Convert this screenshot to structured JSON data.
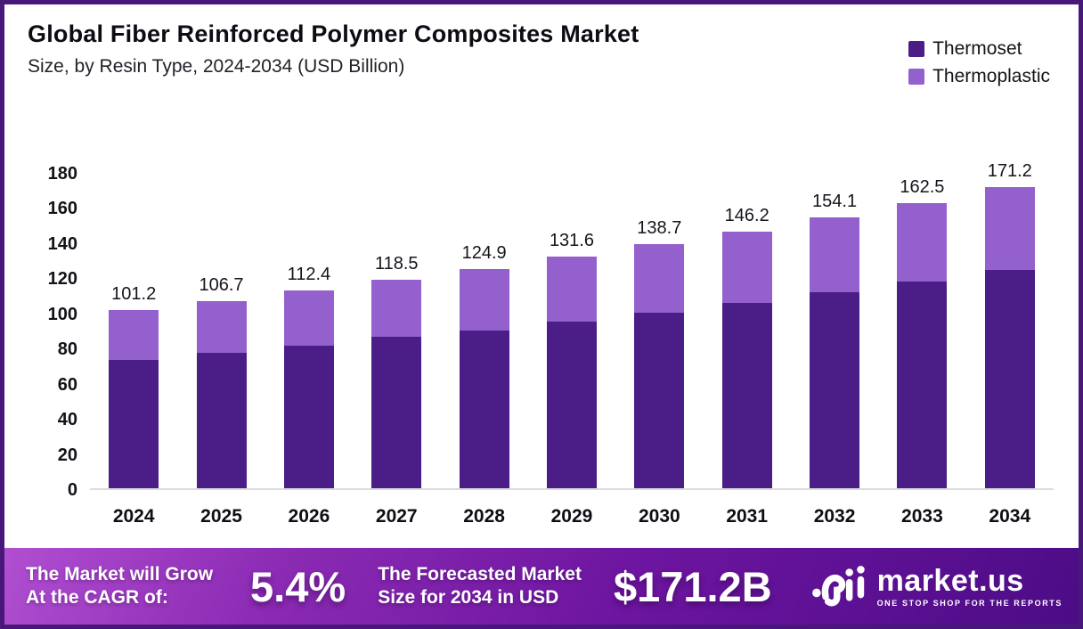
{
  "header": {
    "title": "Global Fiber Reinforced Polymer Composites Market",
    "subtitle": "Size, by Resin Type, 2024-2034 (USD Billion)"
  },
  "legend": {
    "items": [
      {
        "label": "Thermoset",
        "color": "#4A1D87"
      },
      {
        "label": "Thermoplastic",
        "color": "#9460CE"
      }
    ]
  },
  "chart_data": {
    "type": "bar",
    "stacked": true,
    "title": "Global Fiber Reinforced Polymer Composites Market Size, by Resin Type, 2024-2034 (USD Billion)",
    "categories": [
      "2024",
      "2025",
      "2026",
      "2027",
      "2028",
      "2029",
      "2030",
      "2031",
      "2032",
      "2033",
      "2034"
    ],
    "series": [
      {
        "name": "Thermoset",
        "color": "#4A1D87",
        "values": [
          73.0,
          77.0,
          81.0,
          86.0,
          90.0,
          95.0,
          100.0,
          105.5,
          111.5,
          117.5,
          124.0
        ]
      },
      {
        "name": "Thermoplastic",
        "color": "#9460CE",
        "values": [
          28.2,
          29.7,
          31.4,
          32.5,
          34.9,
          36.6,
          38.7,
          40.7,
          42.6,
          45.0,
          47.2
        ]
      }
    ],
    "totals": [
      101.2,
      106.7,
      112.4,
      118.5,
      124.9,
      131.6,
      138.7,
      146.2,
      154.1,
      162.5,
      171.2
    ],
    "total_labels": [
      "101.2",
      "106.7",
      "112.4",
      "118.5",
      "124.9",
      "131.6",
      "138.7",
      "146.2",
      "154.1",
      "162.5",
      "171.2"
    ],
    "ylim": [
      0,
      180
    ],
    "yticks": [
      0,
      20,
      40,
      60,
      80,
      100,
      120,
      140,
      160,
      180
    ],
    "grid": false,
    "legend_position": "top-right",
    "ylabel": "",
    "xlabel": ""
  },
  "banner": {
    "cagr_label_line1": "The Market will Grow",
    "cagr_label_line2": "At the CAGR of:",
    "cagr_value": "5.4%",
    "forecast_label_line1": "The Forecasted Market",
    "forecast_label_line2": "Size for 2034 in USD",
    "forecast_value": "$171.2B",
    "brand_name": "market.us",
    "brand_tagline": "ONE STOP SHOP FOR THE REPORTS"
  },
  "colors": {
    "frame_border": "#471879",
    "thermoset": "#4A1D87",
    "thermoplastic": "#9460CE",
    "banner_gradient": [
      "#B14FD2",
      "#8C2BB4",
      "#6D15A0",
      "#4C0C86"
    ],
    "axis_line": "#DCDCDC",
    "text_dark": "#15141C"
  }
}
